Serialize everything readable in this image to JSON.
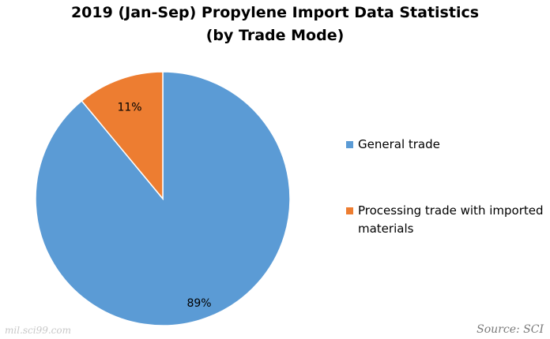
{
  "chart_data": {
    "type": "pie",
    "title": [
      "2019 (Jan-Sep) Propylene Import Data Statistics",
      "(by Trade Mode)"
    ],
    "slices": [
      {
        "label": "General trade",
        "value": 89,
        "value_label": "89%",
        "color": "#5B9BD5"
      },
      {
        "label": "Processing trade with imported materials",
        "value": 11,
        "value_label": "11%",
        "color": "#ED7D31"
      }
    ],
    "legend_position": "right"
  },
  "source": "Source: SCI",
  "watermark": "mil.sci99.com"
}
